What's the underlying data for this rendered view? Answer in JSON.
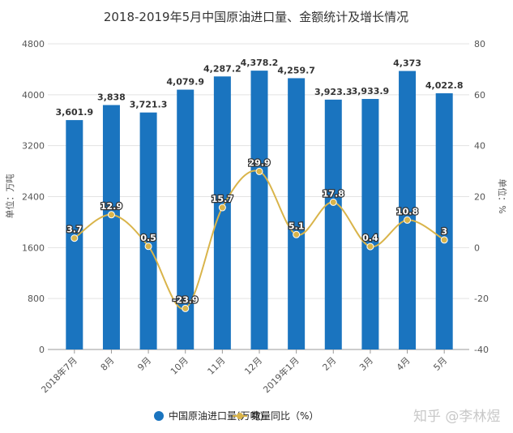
{
  "chart_data": {
    "type": "bar",
    "title": "2018-2019年5月中国原油进口量、金额统计及增长情况",
    "categories": [
      "2018年7月",
      "8月",
      "9月",
      "10月",
      "11月",
      "12月",
      "2019年1月",
      "2月",
      "3月",
      "4月",
      "5月"
    ],
    "series": [
      {
        "name": "中国原油进口量(万吨)",
        "type": "bar",
        "axis": "left",
        "color": "#1a74bf",
        "values": [
          3601.9,
          3838,
          3721.3,
          4079.9,
          4287.2,
          4378.2,
          4259.7,
          3923.3,
          3933.9,
          4373,
          4022.8
        ],
        "labels": [
          "3,601.9",
          "3,838",
          "3,721.3",
          "4,079.9",
          "4,287.2",
          "4,378.2",
          "4,259.7",
          "3,923.3",
          "3,933.9",
          "4,373",
          "4,022.8"
        ]
      },
      {
        "name": "数量同比（%）",
        "type": "line",
        "smooth": true,
        "axis": "right",
        "color": "#d9b44a",
        "values": [
          3.7,
          12.9,
          0.5,
          -23.9,
          15.7,
          29.9,
          5.1,
          17.8,
          0.4,
          10.8,
          3
        ],
        "labels": [
          "3.7",
          "12.9",
          "0.5",
          "-23.9",
          "15.7",
          "29.9",
          "5.1",
          "17.8",
          "0.4",
          "10.8",
          "3"
        ]
      }
    ],
    "ylabel": "单位：万吨",
    "y2label": "单位：%",
    "ylim": [
      0,
      4800
    ],
    "y2lim": [
      -40,
      80
    ],
    "yticks": [
      "0",
      "800",
      "1600",
      "2400",
      "3200",
      "4000",
      "4800"
    ],
    "y2ticks": [
      "-40",
      "-20",
      "0",
      "20",
      "40",
      "60",
      "80"
    ],
    "grid": true,
    "legend": "bottom"
  },
  "watermark": "知乎 @李林煜"
}
